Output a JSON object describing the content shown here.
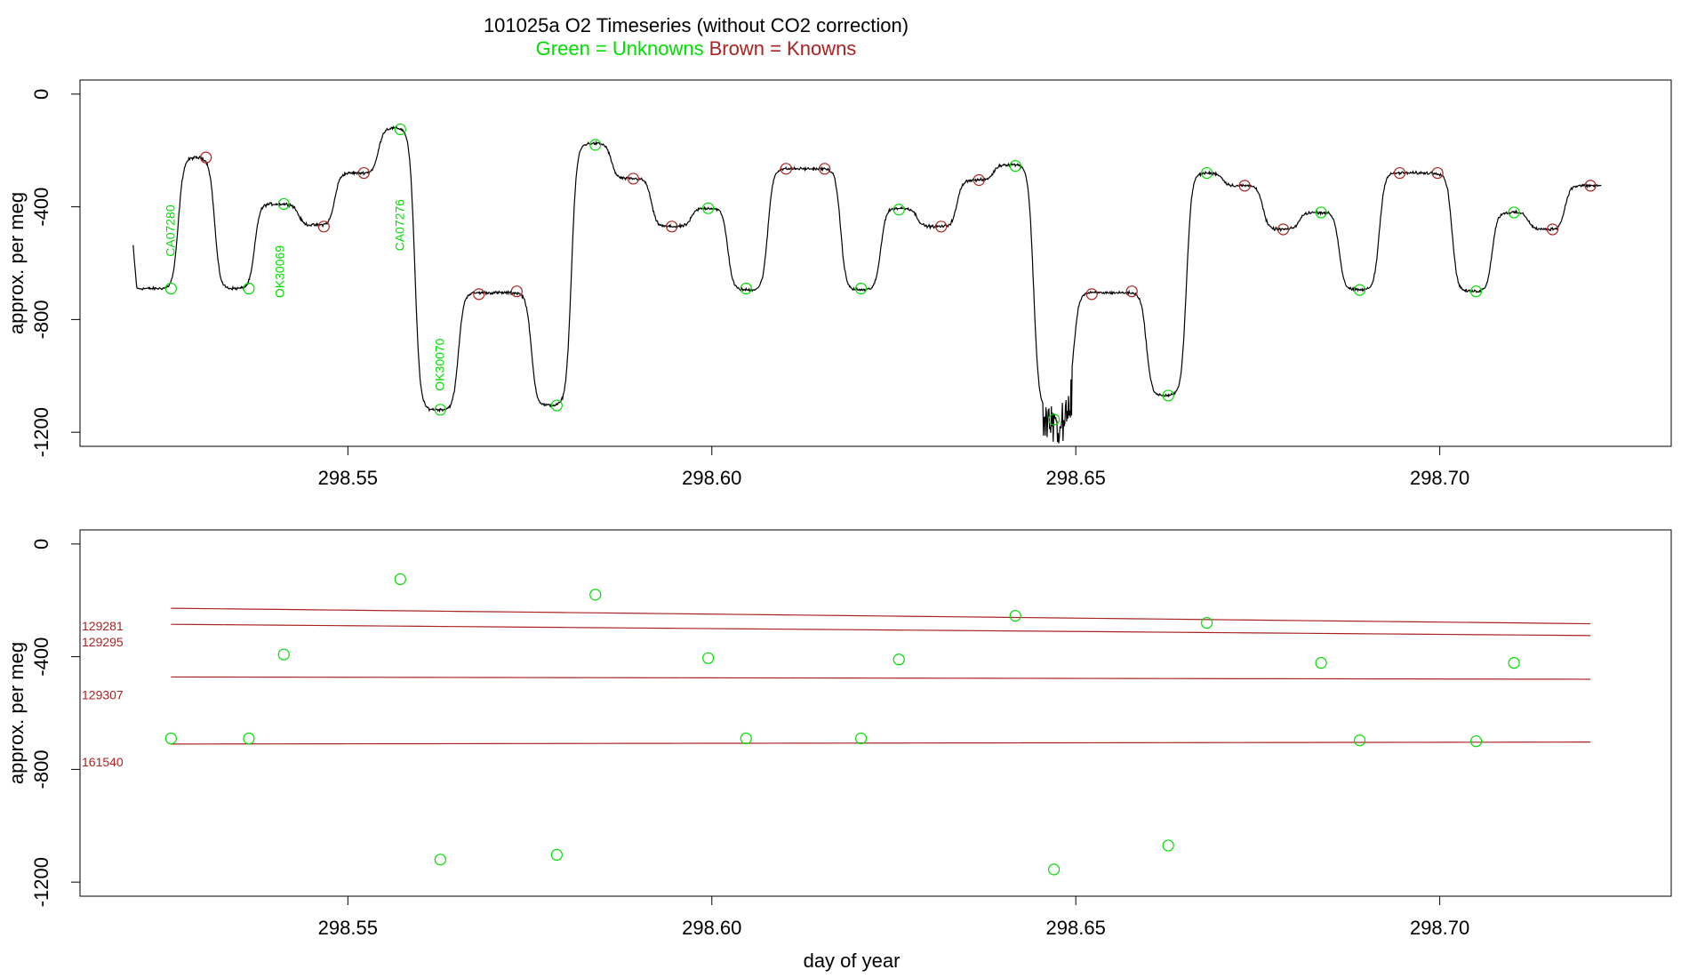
{
  "title": {
    "main": "101025a   O2 Timeseries (without CO2 correction)",
    "unknowns_label": "Green = Unknowns",
    "knowns_label": "Brown = Knowns",
    "unknowns_color": "#00dd00",
    "knowns_color": "#aa2222"
  },
  "chart_data": [
    {
      "type": "line",
      "panel": "top",
      "xlabel": "",
      "ylabel": "approx. per meg",
      "xlim": [
        298.5132,
        298.7318
      ],
      "ylim": [
        -1250,
        50
      ],
      "xticks": [
        298.55,
        298.6,
        298.65,
        298.7
      ],
      "xtick_labels": [
        "298.55",
        "298.60",
        "298.65",
        "298.70"
      ],
      "yticks": [
        0,
        -400,
        -800,
        -1200
      ],
      "ytick_labels": [
        "0",
        "-400",
        "-800",
        "-1200"
      ],
      "trace_steps": [
        {
          "x0": 298.5205,
          "x1": 298.5267,
          "y": -690
        },
        {
          "x0": 298.5267,
          "x1": 298.5317,
          "y": -225
        },
        {
          "x0": 298.5317,
          "x1": 298.5372,
          "y": -690
        },
        {
          "x0": 298.5372,
          "x1": 298.5432,
          "y": -390
        },
        {
          "x0": 298.5432,
          "x1": 298.5482,
          "y": -465
        },
        {
          "x0": 298.5482,
          "x1": 298.5542,
          "y": -280
        },
        {
          "x0": 298.5542,
          "x1": 298.5592,
          "y": -120
        },
        {
          "x0": 298.5592,
          "x1": 298.5652,
          "y": -1120
        },
        {
          "x0": 298.5652,
          "x1": 298.5752,
          "y": -705
        },
        {
          "x0": 298.5752,
          "x1": 298.5807,
          "y": -1105
        },
        {
          "x0": 298.5807,
          "x1": 298.5862,
          "y": -175
        },
        {
          "x0": 298.5862,
          "x1": 298.5917,
          "y": -300
        },
        {
          "x0": 298.5917,
          "x1": 298.5972,
          "y": -470
        },
        {
          "x0": 298.5972,
          "x1": 298.6022,
          "y": -405
        },
        {
          "x0": 298.6022,
          "x1": 298.6077,
          "y": -695
        },
        {
          "x0": 298.6077,
          "x1": 298.6177,
          "y": -265
        },
        {
          "x0": 298.6177,
          "x1": 298.6232,
          "y": -695
        },
        {
          "x0": 298.6232,
          "x1": 298.6282,
          "y": -405
        },
        {
          "x0": 298.6282,
          "x1": 298.6337,
          "y": -470
        },
        {
          "x0": 298.6337,
          "x1": 298.6387,
          "y": -305
        },
        {
          "x0": 298.6387,
          "x1": 298.6442,
          "y": -250
        },
        {
          "x0": 298.6442,
          "x1": 298.6497,
          "y": -1120
        },
        {
          "x0": 298.6497,
          "x1": 298.6597,
          "y": -705
        },
        {
          "x0": 298.6597,
          "x1": 298.6652,
          "y": -1070
        },
        {
          "x0": 298.6652,
          "x1": 298.6702,
          "y": -280
        },
        {
          "x0": 298.6702,
          "x1": 298.6757,
          "y": -325
        },
        {
          "x0": 298.6757,
          "x1": 298.6807,
          "y": -480
        },
        {
          "x0": 298.6807,
          "x1": 298.6862,
          "y": -420
        },
        {
          "x0": 298.6862,
          "x1": 298.6917,
          "y": -695
        },
        {
          "x0": 298.6917,
          "x1": 298.7017,
          "y": -280
        },
        {
          "x0": 298.7017,
          "x1": 298.7072,
          "y": -700
        },
        {
          "x0": 298.7072,
          "x1": 298.7122,
          "y": -420
        },
        {
          "x0": 298.7122,
          "x1": 298.7172,
          "y": -480
        },
        {
          "x0": 298.7172,
          "x1": 298.7222,
          "y": -325
        }
      ],
      "series": [
        {
          "name": "Unknowns",
          "color": "#00dd00",
          "points": [
            {
              "x": 298.5257,
              "y": -690
            },
            {
              "x": 298.5364,
              "y": -690
            },
            {
              "x": 298.5412,
              "y": -390
            },
            {
              "x": 298.5572,
              "y": -125
            },
            {
              "x": 298.5627,
              "y": -1120
            },
            {
              "x": 298.5787,
              "y": -1105
            },
            {
              "x": 298.584,
              "y": -180
            },
            {
              "x": 298.5995,
              "y": -405
            },
            {
              "x": 298.6047,
              "y": -690
            },
            {
              "x": 298.6205,
              "y": -690
            },
            {
              "x": 298.6257,
              "y": -410
            },
            {
              "x": 298.6417,
              "y": -255
            },
            {
              "x": 298.647,
              "y": -1155
            },
            {
              "x": 298.6627,
              "y": -1070
            },
            {
              "x": 298.668,
              "y": -280
            },
            {
              "x": 298.6837,
              "y": -420
            },
            {
              "x": 298.689,
              "y": -695
            },
            {
              "x": 298.705,
              "y": -700
            },
            {
              "x": 298.7102,
              "y": -420
            }
          ]
        },
        {
          "name": "Knowns",
          "color": "#aa2222",
          "points": [
            {
              "x": 298.5305,
              "y": -225
            },
            {
              "x": 298.5467,
              "y": -470
            },
            {
              "x": 298.5522,
              "y": -280
            },
            {
              "x": 298.568,
              "y": -710
            },
            {
              "x": 298.5732,
              "y": -700
            },
            {
              "x": 298.5892,
              "y": -300
            },
            {
              "x": 298.5945,
              "y": -470
            },
            {
              "x": 298.6102,
              "y": -265
            },
            {
              "x": 298.6155,
              "y": -265
            },
            {
              "x": 298.6315,
              "y": -470
            },
            {
              "x": 298.6367,
              "y": -305
            },
            {
              "x": 298.6522,
              "y": -710
            },
            {
              "x": 298.6577,
              "y": -700
            },
            {
              "x": 298.6732,
              "y": -325
            },
            {
              "x": 298.6785,
              "y": -480
            },
            {
              "x": 298.6945,
              "y": -280
            },
            {
              "x": 298.6997,
              "y": -280
            },
            {
              "x": 298.7155,
              "y": -480
            },
            {
              "x": 298.7207,
              "y": -325
            }
          ]
        }
      ],
      "annotations": [
        {
          "text": "CA07280",
          "x": 298.5262,
          "y": -485
        },
        {
          "text": "OK30069",
          "x": 298.5412,
          "y": -630
        },
        {
          "text": "CA07276",
          "x": 298.5577,
          "y": -465
        },
        {
          "text": "OK30070",
          "x": 298.5632,
          "y": -960
        }
      ]
    },
    {
      "type": "scatter",
      "panel": "bottom",
      "xlabel": "day of year",
      "ylabel": "approx. per meg",
      "xlim": [
        298.5132,
        298.7318
      ],
      "ylim": [
        -1250,
        50
      ],
      "xticks": [
        298.55,
        298.6,
        298.65,
        298.7
      ],
      "xtick_labels": [
        "298.55",
        "298.60",
        "298.65",
        "298.70"
      ],
      "yticks": [
        0,
        -400,
        -800,
        -1200
      ],
      "ytick_labels": [
        "0",
        "-400",
        "-800",
        "-1200"
      ],
      "series": [
        {
          "name": "Unknowns",
          "color": "#00dd00",
          "points": [
            {
              "x": 298.5257,
              "y": -690
            },
            {
              "x": 298.5364,
              "y": -690
            },
            {
              "x": 298.5412,
              "y": -392
            },
            {
              "x": 298.5572,
              "y": -125
            },
            {
              "x": 298.5627,
              "y": -1120
            },
            {
              "x": 298.5787,
              "y": -1103
            },
            {
              "x": 298.584,
              "y": -180
            },
            {
              "x": 298.5995,
              "y": -405
            },
            {
              "x": 298.6047,
              "y": -690
            },
            {
              "x": 298.6205,
              "y": -690
            },
            {
              "x": 298.6257,
              "y": -410
            },
            {
              "x": 298.6417,
              "y": -255
            },
            {
              "x": 298.647,
              "y": -1155
            },
            {
              "x": 298.6627,
              "y": -1070
            },
            {
              "x": 298.668,
              "y": -280
            },
            {
              "x": 298.6837,
              "y": -422
            },
            {
              "x": 298.689,
              "y": -697
            },
            {
              "x": 298.705,
              "y": -700
            },
            {
              "x": 298.7102,
              "y": -422
            }
          ]
        }
      ],
      "known_lines": [
        {
          "label": "129281",
          "x0": 298.5257,
          "x1": 298.7207,
          "y_start": -228,
          "y_end": -283
        },
        {
          "label": "129295",
          "x0": 298.5257,
          "x1": 298.7207,
          "y_start": -285,
          "y_end": -325
        },
        {
          "label": "129307",
          "x0": 298.5257,
          "x1": 298.7207,
          "y_start": -472,
          "y_end": -480
        },
        {
          "label": "161540",
          "x0": 298.5257,
          "x1": 298.7207,
          "y_start": -710,
          "y_end": -703
        }
      ]
    }
  ]
}
